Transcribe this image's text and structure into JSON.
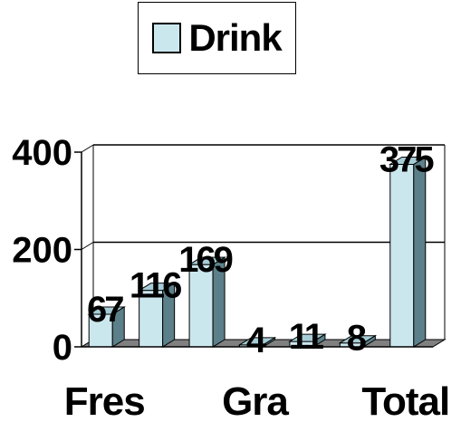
{
  "chart_data": {
    "type": "bar",
    "categories": [
      "Fres",
      "",
      "",
      "Gra",
      "",
      "",
      "Total"
    ],
    "series": [
      {
        "name": "Drink",
        "values": [
          67,
          116,
          169,
          4,
          11,
          8,
          375
        ]
      }
    ],
    "data_labels": [
      "67",
      "116",
      "169",
      "4",
      "11",
      "8",
      "375"
    ],
    "y_ticks": [
      0,
      200,
      400
    ],
    "y_tick_labels": [
      "0",
      "200",
      "400"
    ],
    "ylim": [
      0,
      400
    ],
    "grid": true,
    "legend": "top-center",
    "colors": {
      "bar_front": "#cbe7ee",
      "bar_top": "#a6ccd6",
      "bar_side": "#5c8089",
      "floor": "#808080"
    }
  },
  "legend": {
    "label": "Drink"
  }
}
